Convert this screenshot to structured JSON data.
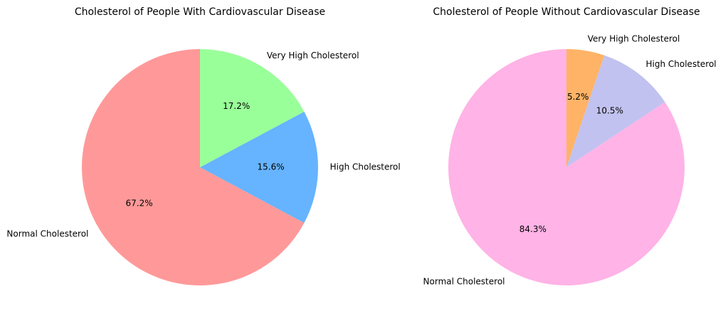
{
  "chart_data": [
    {
      "type": "pie",
      "title": "Cholesterol of People With Cardiovascular Disease",
      "categories": [
        "Normal Cholesterol",
        "High Cholesterol",
        "Very High Cholesterol"
      ],
      "values": [
        67.2,
        15.6,
        17.2
      ],
      "value_labels": [
        "67.2%",
        "15.6%",
        "17.2%"
      ],
      "colors": [
        "#ff9999",
        "#66b3ff",
        "#99ff99"
      ],
      "start_angle_deg": 90,
      "direction": "counterclockwise"
    },
    {
      "type": "pie",
      "title": "Cholesterol of People Without Cardiovascular Disease",
      "categories": [
        "Normal Cholesterol",
        "High Cholesterol",
        "Very High Cholesterol"
      ],
      "values": [
        84.3,
        10.5,
        5.2
      ],
      "value_labels": [
        "84.3%",
        "10.5%",
        "5.2%"
      ],
      "colors": [
        "#ffb3e6",
        "#c2c2f0",
        "#ffb366"
      ],
      "start_angle_deg": 90,
      "direction": "counterclockwise"
    }
  ]
}
